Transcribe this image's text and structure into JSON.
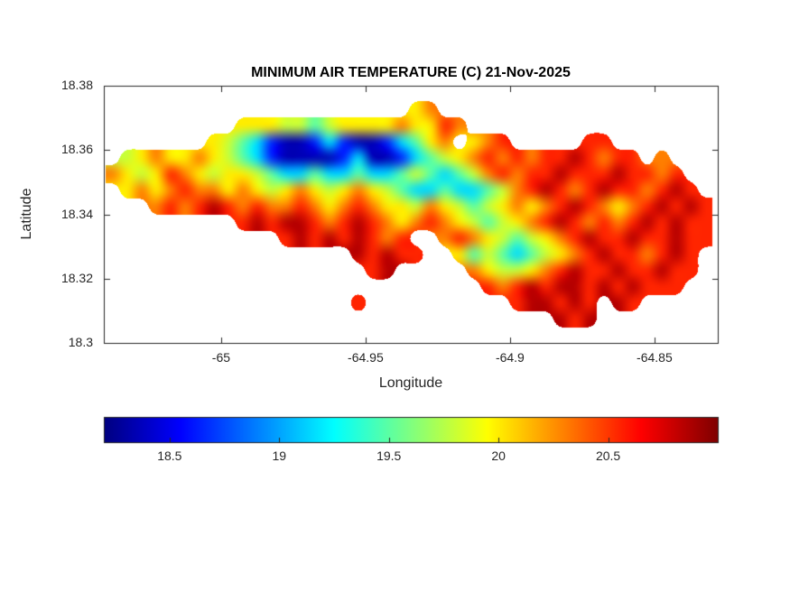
{
  "chart_data": {
    "type": "heatmap",
    "title": "MINIMUM AIR TEMPERATURE (C) 21-Nov-2025",
    "xlabel": "Longitude",
    "ylabel": "Latitude",
    "x_range": [
      -65.0406,
      -64.8281
    ],
    "y_range": [
      18.3,
      18.38
    ],
    "x_ticks": [
      -65,
      -64.95,
      -64.9,
      -64.85
    ],
    "x_tick_labels": [
      "-65",
      "-64.95",
      "-64.9",
      "-64.85"
    ],
    "y_ticks": [
      18.3,
      18.32,
      18.34,
      18.36,
      18.38
    ],
    "y_tick_labels": [
      "18.3",
      "18.32",
      "18.34",
      "18.36",
      "18.38"
    ],
    "colormap": "jet",
    "clim": [
      18.2,
      21.0
    ],
    "colorbar_orientation": "horizontal",
    "colorbar_ticks": [
      18.5,
      19,
      19.5,
      20,
      20.5
    ],
    "colorbar_tick_labels": [
      "18.5",
      "19",
      "19.5",
      "20",
      "20.5"
    ],
    "grid": {
      "description": "Temperature grid (deg C). Rows run north (lat 18.38) to south, chars run west (lon -65.04) to east. '.' = water / no data.",
      "lon_start": -65.04,
      "lon_step": 0.005,
      "lat_start": 18.38,
      "lat_step": -0.005,
      "value_key": {
        "B": 18.35,
        "b": 18.65,
        "c": 19.15,
        "g": 19.5,
        "y": 19.8,
        "Y": 20.0,
        "O": 20.3,
        "R": 20.55,
        "D": 20.85,
        ".": null
      },
      "rows": [
        "..........................................",
        ".....................YO...................",
        ".........YYYyygyYYYYOYYRO.................",
        ".......YygcbBBbcbBBbcgYO.YOR.....RR.......",
        ".yYOYYOYygcbBBBBbcBBbcgyYORORORRDRORR.O...",
        "OYyYROYyYYygccgccgccgygcgyORORRDRRRDRROR..",
        ".YOYOROOYOYyYOYyYOYygccgccgyORDRORDRRORDR.",
        "...ORORDROROOROYOROYYyOYygyYOYORDROYORDRDR",
        ".........RDRDDRORDROYOROYygyYORDRORORDRDRR",
        "............RDRDRDROR..OROYygyYORDRRDRRDRR",
        ".................DRDRR..YgygcgyYORDRRORDR.",
        "..................RD.....OYyyYORDRRDRRDRR.",
        "..........................RORDRDDRDRDRRR..",
        ".................R..........RDDRDR.DR.....",
        "...............................DRD........",
        ".........................................."
      ]
    }
  }
}
